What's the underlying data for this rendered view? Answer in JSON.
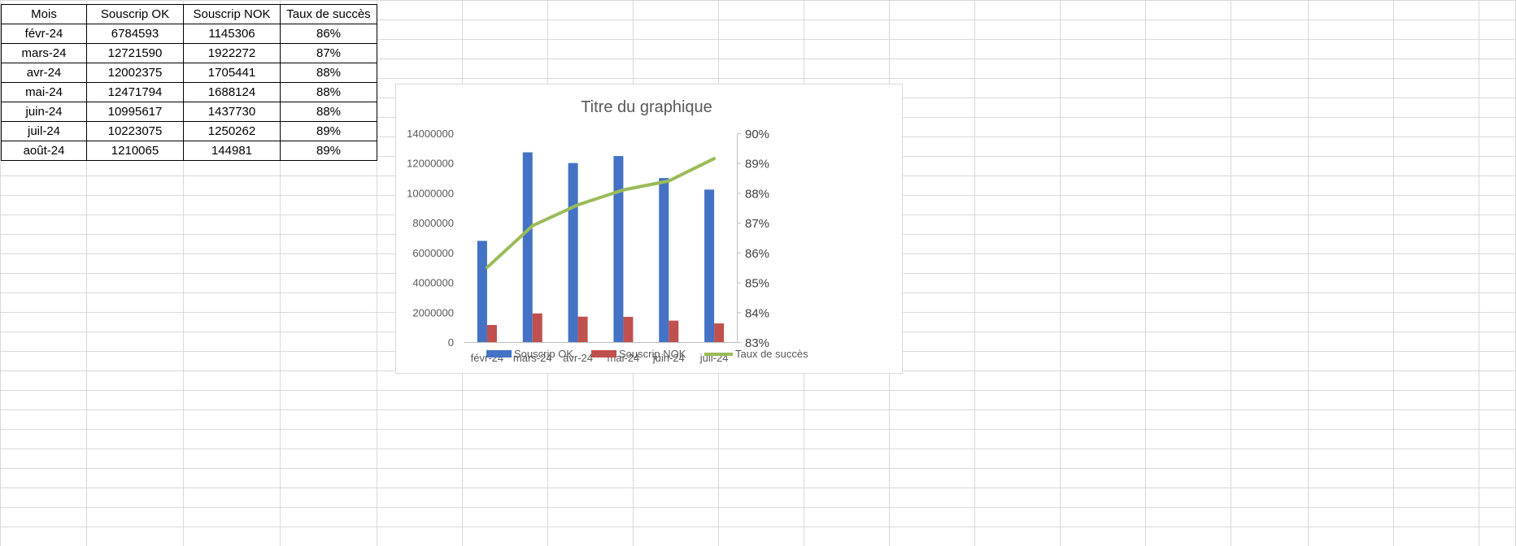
{
  "sheet": {
    "headers": [
      "Mois",
      "Souscrip OK",
      "Souscrip NOK",
      "Taux de succès"
    ],
    "rows": [
      [
        "févr-24",
        "6784593",
        "1145306",
        "86%"
      ],
      [
        "mars-24",
        "12721590",
        "1922272",
        "87%"
      ],
      [
        "avr-24",
        "12002375",
        "1705441",
        "88%"
      ],
      [
        "mai-24",
        "12471794",
        "1688124",
        "88%"
      ],
      [
        "juin-24",
        "10995617",
        "1437730",
        "88%"
      ],
      [
        "juil-24",
        "10223075",
        "1250262",
        "89%"
      ],
      [
        "août-24",
        "1210065",
        "144981",
        "89%"
      ]
    ]
  },
  "chart_data": {
    "type": "bar",
    "title": "Titre du graphique",
    "categories": [
      "févr-24",
      "mars-24",
      "avr-24",
      "mai-24",
      "juin-24",
      "juil-24"
    ],
    "series": [
      {
        "name": "Souscrip OK",
        "type": "bar",
        "axis": "left",
        "color": "#4472C4",
        "values": [
          6784593,
          12721590,
          12002375,
          12471794,
          10995617,
          10223075
        ]
      },
      {
        "name": "Souscrip NOK",
        "type": "bar",
        "axis": "left",
        "color": "#C0504D",
        "values": [
          1145306,
          1922272,
          1705441,
          1688124,
          1437730,
          1250262
        ]
      },
      {
        "name": "Taux de succès",
        "type": "line",
        "axis": "right",
        "color": "#9BBB59",
        "values": [
          0.855,
          0.869,
          0.876,
          0.881,
          0.884,
          0.8915
        ]
      }
    ],
    "y_left": {
      "min": 0,
      "max": 14000000,
      "ticks": [
        "0",
        "2000000",
        "4000000",
        "6000000",
        "8000000",
        "10000000",
        "12000000",
        "14000000"
      ]
    },
    "y_right": {
      "min": 0.83,
      "max": 0.9,
      "ticks": [
        "83%",
        "84%",
        "85%",
        "86%",
        "87%",
        "88%",
        "89%",
        "90%"
      ]
    },
    "legend_position": "bottom",
    "grid": false
  }
}
